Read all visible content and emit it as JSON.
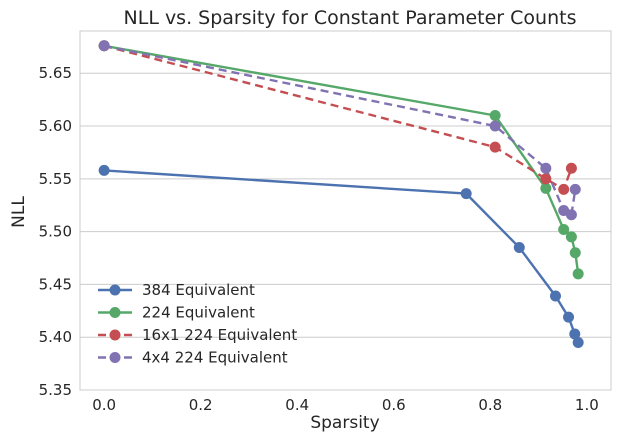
{
  "chart_data": {
    "type": "line",
    "title": "NLL vs. Sparsity for Constant Parameter Counts",
    "xlabel": "Sparsity",
    "ylabel": "NLL",
    "xlim": [
      -0.05,
      1.05
    ],
    "ylim": [
      5.35,
      5.69
    ],
    "xticks": [
      "0.0",
      "0.2",
      "0.4",
      "0.6",
      "0.8",
      "1.0"
    ],
    "yticks": [
      "5.35",
      "5.40",
      "5.45",
      "5.50",
      "5.55",
      "5.60",
      "5.65"
    ],
    "grid": "horizontal",
    "legend_position": "lower-left",
    "series": [
      {
        "name": "384 Equivalent",
        "color": "#4c72b0",
        "dash": "solid",
        "x": [
          0.0,
          0.75,
          0.86,
          0.935,
          0.962,
          0.975,
          0.982
        ],
        "y": [
          5.558,
          5.536,
          5.485,
          5.439,
          5.419,
          5.403,
          5.395
        ]
      },
      {
        "name": "224 Equivalent",
        "color": "#55a868",
        "dash": "solid",
        "x": [
          0.0,
          0.81,
          0.915,
          0.952,
          0.968,
          0.976,
          0.982
        ],
        "y": [
          5.676,
          5.61,
          5.541,
          5.502,
          5.495,
          5.48,
          5.46
        ]
      },
      {
        "name": "16x1 224 Equivalent",
        "color": "#c44e52",
        "dash": "dashed",
        "x": [
          0.0,
          0.81,
          0.915,
          0.952,
          0.968
        ],
        "y": [
          5.676,
          5.58,
          5.55,
          5.54,
          5.56
        ]
      },
      {
        "name": "4x4 224 Equivalent",
        "color": "#8172b2",
        "dash": "dashed",
        "x": [
          0.0,
          0.81,
          0.915,
          0.952,
          0.968,
          0.976
        ],
        "y": [
          5.676,
          5.6,
          5.56,
          5.52,
          5.516,
          5.54
        ]
      }
    ]
  }
}
